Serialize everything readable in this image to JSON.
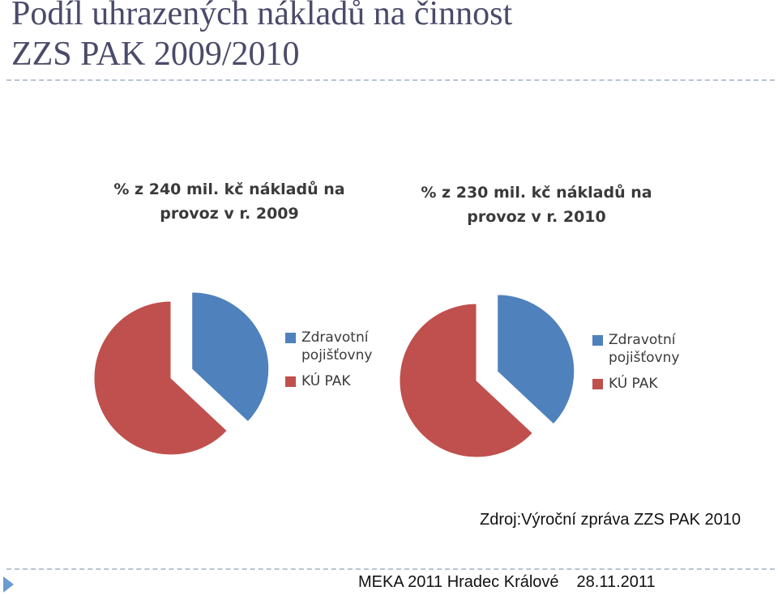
{
  "slide": {
    "title_line1": "Podíl uhrazených nákladů na činnost",
    "title_line2": "ZZS PAK 2009/2010",
    "source": "Zdroj:Výroční zpráva ZZS PAK 2010",
    "footer_event": "MEKA 2011 Hradec Králové",
    "footer_date": "28.11.2011",
    "footer_icon": "triangle-bullet-icon"
  },
  "colors": {
    "blue": "#4f81bd",
    "red": "#c0504d"
  },
  "chart_data": [
    {
      "type": "pie",
      "title_line1": "% z 240 mil. kč nákladů na",
      "title_line2": "provoz v r. 2009",
      "slices": [
        {
          "label": "Zdravotní pojišťovny",
          "value": 37,
          "color": "#4f81bd",
          "exploded": true
        },
        {
          "label": "KÚ PAK",
          "value": 63,
          "color": "#c0504d",
          "exploded": false
        }
      ],
      "legend_position": "right",
      "legend": [
        {
          "label": "Zdravotní pojišťovny",
          "color": "#4f81bd"
        },
        {
          "label": "KÚ PAK",
          "color": "#c0504d"
        }
      ]
    },
    {
      "type": "pie",
      "title_line1": "% z 230 mil. kč nákladů na",
      "title_line2": "provoz v r. 2010",
      "slices": [
        {
          "label": "Zdravotní pojišťovny",
          "value": 37,
          "color": "#4f81bd",
          "exploded": true
        },
        {
          "label": "KÚ PAK",
          "value": 63,
          "color": "#c0504d",
          "exploded": false
        }
      ],
      "legend_position": "right",
      "legend": [
        {
          "label": "Zdravotní pojišťovny",
          "color": "#4f81bd"
        },
        {
          "label": "KÚ PAK",
          "color": "#c0504d"
        }
      ]
    }
  ]
}
